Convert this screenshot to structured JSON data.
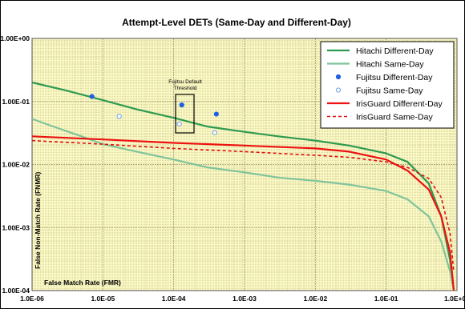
{
  "chart_data": {
    "type": "line",
    "title": "Attempt-Level DETs (Same-Day and Different-Day)",
    "xlabel": "False Match Rate (FMR)",
    "ylabel": "False Non-Match Rate (FNMR)",
    "xscale": "log",
    "yscale": "log",
    "xlim": [
      1e-06,
      1
    ],
    "ylim": [
      0.0001,
      1
    ],
    "xticks": [
      "1.0E-06",
      "1.0E-05",
      "1.0E-04",
      "1.0E-03",
      "1.0E-02",
      "1.0E-01",
      "1.0E+00"
    ],
    "yticks": [
      "1.00E-04",
      "1.00E-03",
      "1.00E-02",
      "1.00E-01",
      "1.00E+00"
    ],
    "grid": true,
    "legend_position": "top-right",
    "annotation": "Fujitsu Default Threshold",
    "series": [
      {
        "name": "Hitachi Different-Day",
        "style": "line",
        "color": "#2e9a50",
        "points": [
          [
            1e-06,
            0.2
          ],
          [
            3e-06,
            0.15
          ],
          [
            1e-05,
            0.105
          ],
          [
            3e-05,
            0.075
          ],
          [
            0.0001,
            0.055
          ],
          [
            0.0003,
            0.04
          ],
          [
            0.001,
            0.033
          ],
          [
            0.003,
            0.028
          ],
          [
            0.01,
            0.024
          ],
          [
            0.03,
            0.02
          ],
          [
            0.1,
            0.015
          ],
          [
            0.2,
            0.011
          ],
          [
            0.4,
            0.005
          ],
          [
            0.6,
            0.0015
          ],
          [
            0.8,
            0.0003
          ],
          [
            0.9,
            0.0001
          ]
        ]
      },
      {
        "name": "Hitachi Same-Day",
        "style": "line",
        "color": "#7fc49b",
        "points": [
          [
            1e-06,
            0.053
          ],
          [
            2e-06,
            0.04
          ],
          [
            5e-06,
            0.028
          ],
          [
            1e-05,
            0.021
          ],
          [
            3e-05,
            0.016
          ],
          [
            0.0001,
            0.012
          ],
          [
            0.0003,
            0.009
          ],
          [
            0.001,
            0.0075
          ],
          [
            0.003,
            0.0062
          ],
          [
            0.01,
            0.0055
          ],
          [
            0.03,
            0.0048
          ],
          [
            0.1,
            0.0038
          ],
          [
            0.2,
            0.0028
          ],
          [
            0.4,
            0.0015
          ],
          [
            0.6,
            0.0006
          ],
          [
            0.8,
            0.0002
          ],
          [
            0.9,
            0.0001
          ]
        ]
      },
      {
        "name": "Fujitsu Different-Day",
        "style": "marker-filled",
        "color": "#1f5fe0",
        "points": [
          [
            7e-06,
            0.12
          ],
          [
            0.00013,
            0.088
          ],
          [
            0.0004,
            0.063
          ]
        ]
      },
      {
        "name": "Fujitsu Same-Day",
        "style": "marker-open",
        "color": "#6fa0e8",
        "points": [
          [
            1.7e-05,
            0.058
          ],
          [
            0.00012,
            0.044
          ],
          [
            0.00038,
            0.032
          ]
        ]
      },
      {
        "name": "IrisGuard Different-Day",
        "style": "line",
        "color": "#ee1111",
        "points": [
          [
            1e-06,
            0.028
          ],
          [
            1e-05,
            0.025
          ],
          [
            0.0001,
            0.022
          ],
          [
            0.001,
            0.02
          ],
          [
            0.01,
            0.018
          ],
          [
            0.03,
            0.016
          ],
          [
            0.1,
            0.012
          ],
          [
            0.2,
            0.008
          ],
          [
            0.4,
            0.004
          ],
          [
            0.6,
            0.0015
          ],
          [
            0.8,
            0.0004
          ],
          [
            0.9,
            0.0001
          ]
        ]
      },
      {
        "name": "IrisGuard Same-Day",
        "style": "dashed",
        "color": "#dd1111",
        "points": [
          [
            1e-06,
            0.024
          ],
          [
            1e-05,
            0.021
          ],
          [
            0.0001,
            0.018
          ],
          [
            0.001,
            0.016
          ],
          [
            0.01,
            0.014
          ],
          [
            0.03,
            0.013
          ],
          [
            0.1,
            0.011
          ],
          [
            0.2,
            0.009
          ],
          [
            0.4,
            0.006
          ],
          [
            0.6,
            0.003
          ],
          [
            0.8,
            0.0008
          ],
          [
            0.9,
            0.0002
          ]
        ]
      }
    ]
  }
}
